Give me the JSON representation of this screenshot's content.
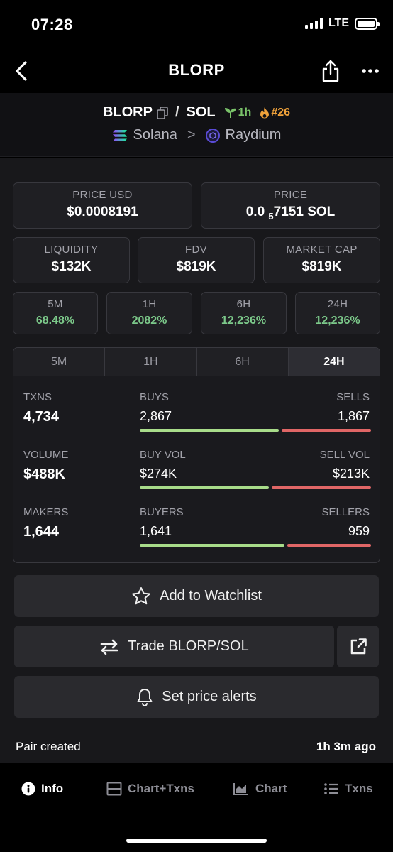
{
  "status": {
    "time": "07:28",
    "network": "LTE"
  },
  "nav": {
    "title": "BLORP"
  },
  "pair": {
    "base": "BLORP",
    "separator": "/",
    "quote": "SOL",
    "age": "1h",
    "rank": "#26",
    "chain": "Solana",
    "chevron": ">",
    "dex": "Raydium"
  },
  "price": {
    "usd_label": "PRICE USD",
    "usd_value": "$0.0008191",
    "native_label": "PRICE",
    "native_prefix": "0.0",
    "native_zero_count": "5",
    "native_digits": "7151",
    "native_unit": "SOL"
  },
  "metrics": {
    "liquidity_label": "LIQUIDITY",
    "liquidity_value": "$132K",
    "fdv_label": "FDV",
    "fdv_value": "$819K",
    "mcap_label": "MARKET CAP",
    "mcap_value": "$819K"
  },
  "changes": [
    {
      "label": "5M",
      "value": "68.48%"
    },
    {
      "label": "1H",
      "value": "2082%"
    },
    {
      "label": "6H",
      "value": "12,236%"
    },
    {
      "label": "24H",
      "value": "12,236%"
    }
  ],
  "txn_tabs": [
    {
      "label": "5M"
    },
    {
      "label": "1H"
    },
    {
      "label": "6H"
    },
    {
      "label": "24H"
    }
  ],
  "txn_stats": {
    "txns_label": "TXNS",
    "txns_value": "4,734",
    "volume_label": "VOLUME",
    "volume_value": "$488K",
    "makers_label": "MAKERS",
    "makers_value": "1,644",
    "buys_label": "BUYS",
    "buys_value": "2,867",
    "sells_label": "SELLS",
    "sells_value": "1,867",
    "buyvol_label": "BUY VOL",
    "buyvol_value": "$274K",
    "sellvol_label": "SELL VOL",
    "sellvol_value": "$213K",
    "buyers_label": "BUYERS",
    "buyers_value": "1,641",
    "sellers_label": "SELLERS",
    "sellers_value": "959",
    "buys_share": 0.606,
    "buyvol_share": 0.563,
    "buyers_share": 0.631
  },
  "actions": {
    "watchlist": "Add to Watchlist",
    "trade": "Trade BLORP/SOL",
    "alerts": "Set price alerts"
  },
  "pair_created": {
    "label": "Pair created",
    "value": "1h 3m ago"
  },
  "tabbar": {
    "info": "Info",
    "chart_txns": "Chart+Txns",
    "chart": "Chart",
    "txns": "Txns"
  },
  "colors": {
    "positive": "#7cc98a",
    "buy_bar": "#a8dc8a",
    "sell_bar": "#e06666",
    "age": "#7ac36a",
    "rank": "#f0a23a"
  }
}
